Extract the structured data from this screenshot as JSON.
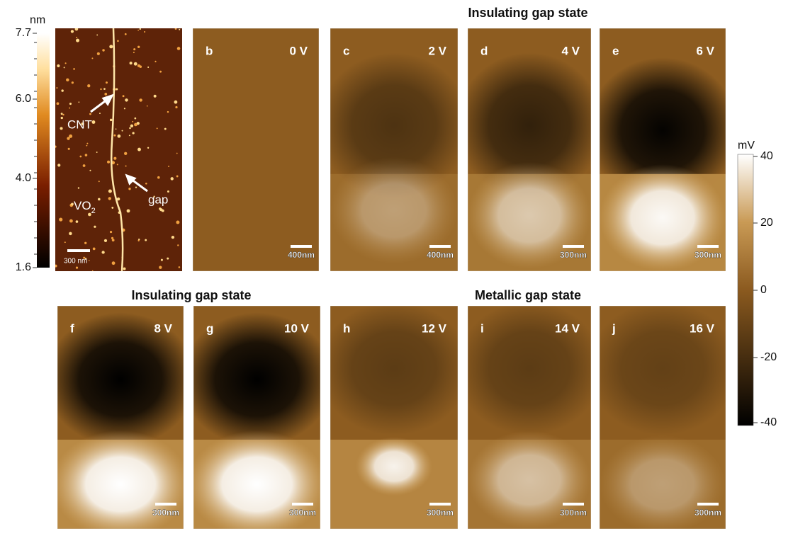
{
  "titles": {
    "top": "Insulating gap state",
    "bottom_left": "Insulating gap state",
    "bottom_right": "Metallic gap state"
  },
  "topography": {
    "unit": "nm",
    "ticks": [
      "7.7",
      "6.0",
      "4.0",
      "1.6"
    ],
    "annotations": [
      "CNT",
      "gap"
    ],
    "material": {
      "base": "VO",
      "sub": "2"
    },
    "scale_bar": "300 nm"
  },
  "panels": [
    {
      "label": "b",
      "voltage": "0 V",
      "scale_bar": "400nm"
    },
    {
      "label": "c",
      "voltage": "2 V",
      "scale_bar": "400nm"
    },
    {
      "label": "d",
      "voltage": "4 V",
      "scale_bar": "300nm"
    },
    {
      "label": "e",
      "voltage": "6 V",
      "scale_bar": "300nm"
    },
    {
      "label": "f",
      "voltage": "8 V",
      "scale_bar": "300nm"
    },
    {
      "label": "g",
      "voltage": "10 V",
      "scale_bar": "300nm"
    },
    {
      "label": "h",
      "voltage": "12 V",
      "scale_bar": "300nm"
    },
    {
      "label": "i",
      "voltage": "14 V",
      "scale_bar": "300nm"
    },
    {
      "label": "j",
      "voltage": "16 V",
      "scale_bar": "300nm"
    }
  ],
  "potential": {
    "unit": "mV",
    "ticks": [
      "40",
      "20",
      "0",
      "-20",
      "-40"
    ]
  }
}
